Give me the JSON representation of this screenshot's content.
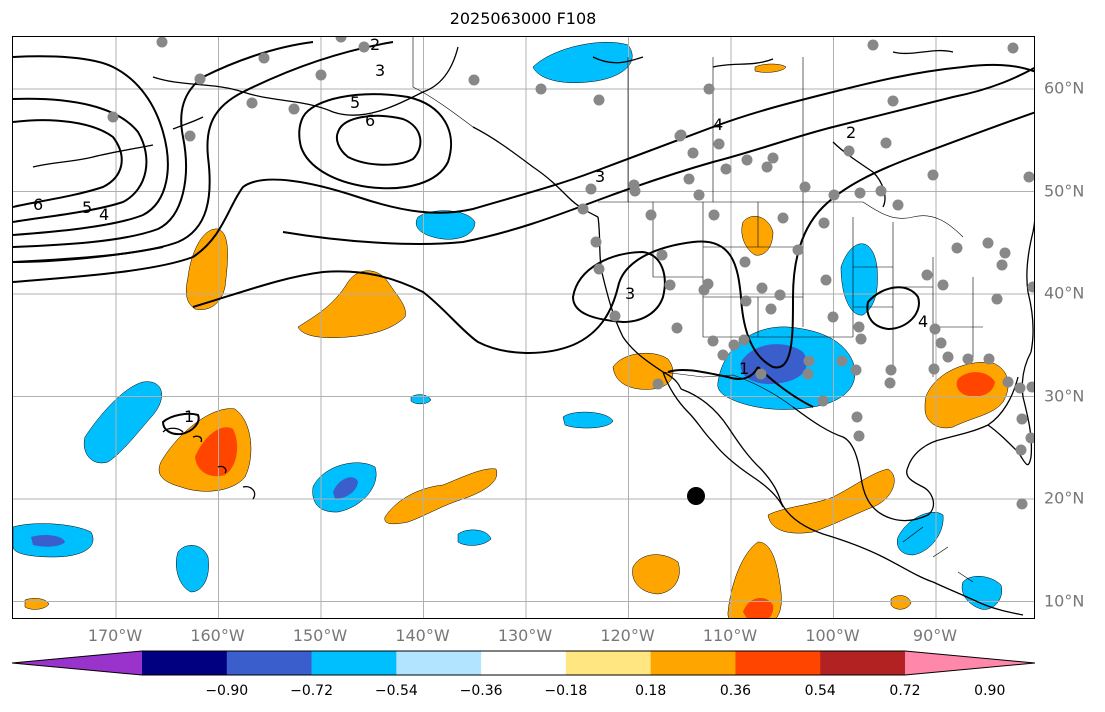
{
  "title": "2025063000 F108",
  "map": {
    "lon_labels": [
      {
        "text": "170°W",
        "lon": -170
      },
      {
        "text": "160°W",
        "lon": -160
      },
      {
        "text": "150°W",
        "lon": -150
      },
      {
        "text": "140°W",
        "lon": -140
      },
      {
        "text": "130°W",
        "lon": -130
      },
      {
        "text": "120°W",
        "lon": -120
      },
      {
        "text": "110°W",
        "lon": -110
      },
      {
        "text": "100°W",
        "lon": -100
      },
      {
        "text": "90°W",
        "lon": -90
      }
    ],
    "lat_labels": [
      {
        "text": "60°N",
        "lat": 60
      },
      {
        "text": "50°N",
        "lat": 50
      },
      {
        "text": "40°N",
        "lat": 40
      },
      {
        "text": "30°N",
        "lat": 30
      },
      {
        "text": "20°N",
        "lat": 20
      },
      {
        "text": "10°N",
        "lat": 10
      }
    ],
    "lon_range": [
      -180,
      -80
    ],
    "lat_range": [
      8,
      65
    ],
    "grid": true
  },
  "colorbar": {
    "colors": [
      "#9933cc",
      "#000080",
      "#3a5fcd",
      "#00bfff",
      "#b2e4ff",
      "#ffffff",
      "#ffe680",
      "#ffa500",
      "#ff4500",
      "#b22222",
      "#ff88aa"
    ],
    "tick_labels": [
      "−0.90",
      "−0.72",
      "−0.54",
      "−0.36",
      "−0.18",
      "0.18",
      "0.36",
      "0.54",
      "0.72",
      "0.90"
    ],
    "extend": "both"
  },
  "contour_labels": [
    "2",
    "3",
    "5",
    "6",
    "4",
    "2",
    "6",
    "5",
    "4",
    "3",
    "3",
    "4",
    "1",
    "1"
  ]
}
